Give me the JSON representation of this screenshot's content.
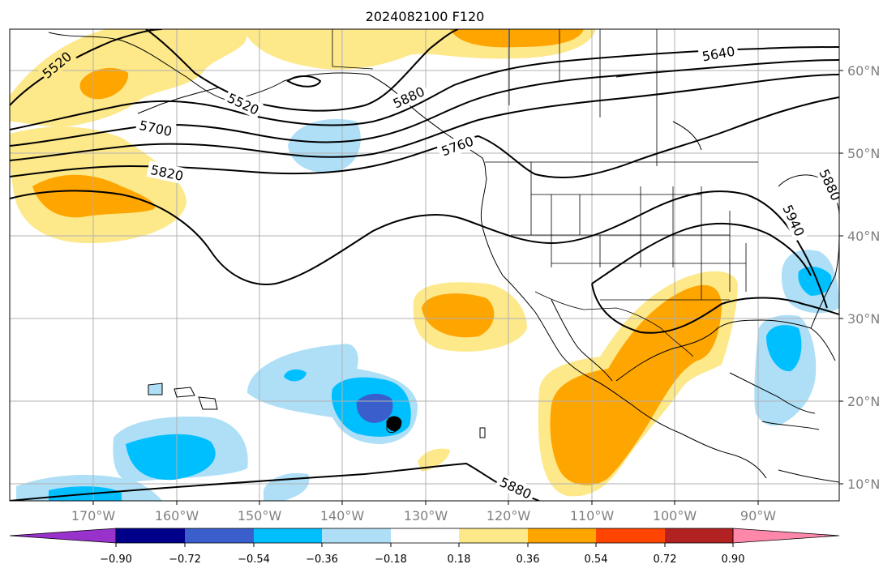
{
  "title": "2024082100 F120",
  "map": {
    "lon_labels": [
      "170°W",
      "160°W",
      "150°W",
      "140°W",
      "130°W",
      "120°W",
      "110°W",
      "100°W",
      "90°W"
    ],
    "lat_labels": [
      "60°N",
      "50°N",
      "40°N",
      "30°N",
      "20°N",
      "10°N"
    ],
    "contour_labels": [
      "5520",
      "5520",
      "5640",
      "5700",
      "5820",
      "5760",
      "5880",
      "5880",
      "5880",
      "5940"
    ],
    "shading_colors": {
      "light_blue": "#aedff7",
      "blue": "#00bfff",
      "mid_blue": "#3a5fcd",
      "light_yellow": "#fde88a",
      "orange": "#ffa500"
    }
  },
  "colorbar": {
    "ticks": [
      "−0.90",
      "−0.72",
      "−0.54",
      "−0.36",
      "−0.18",
      "0.18",
      "0.36",
      "0.54",
      "0.72",
      "0.90"
    ],
    "colors": [
      "#9932cc",
      "#00008b",
      "#3a5fcd",
      "#00bfff",
      "#aedff7",
      "#ffffff",
      "#fde88a",
      "#ffa500",
      "#ff4500",
      "#b22222",
      "#ff88aa"
    ]
  }
}
